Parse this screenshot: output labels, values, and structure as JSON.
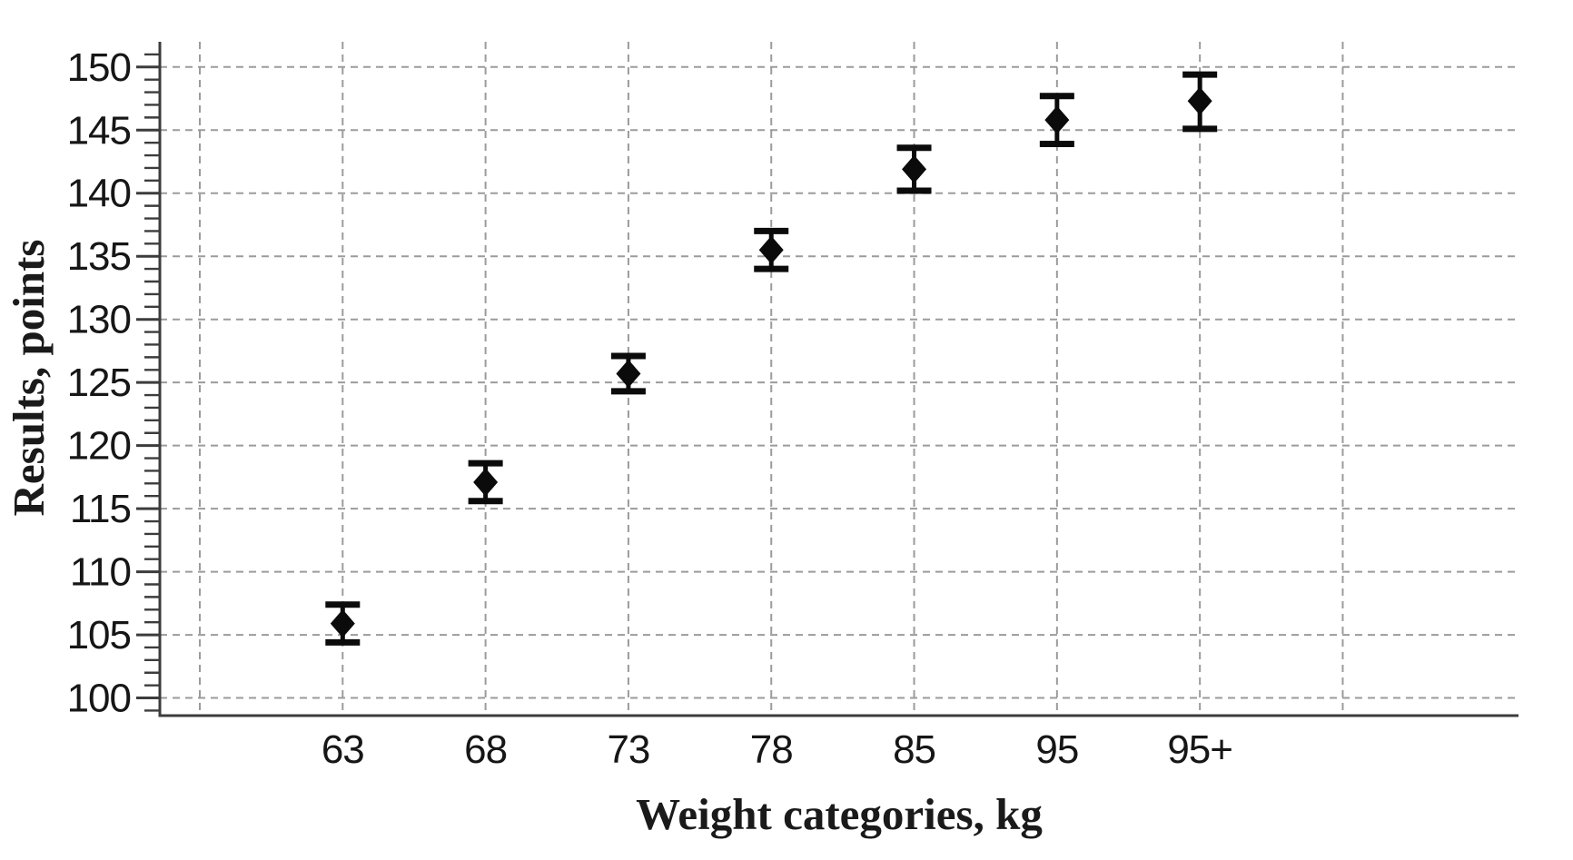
{
  "chart_data": {
    "type": "scatter",
    "title": "",
    "xlabel": "Weight categories, kg",
    "ylabel": "Results, points",
    "categories": [
      "63",
      "68",
      "73",
      "78",
      "85",
      "95",
      "95+"
    ],
    "series": [
      {
        "name": "Results",
        "means": [
          105.9,
          117.1,
          125.7,
          135.5,
          141.9,
          145.8,
          147.3
        ],
        "lower": [
          104.4,
          115.6,
          124.3,
          134.0,
          140.2,
          143.9,
          145.1
        ],
        "upper": [
          107.4,
          118.6,
          127.1,
          137.0,
          143.6,
          147.7,
          149.4
        ]
      }
    ],
    "ylim": [
      98.6,
      152.0
    ],
    "yticks": [
      100,
      105,
      110,
      115,
      120,
      125,
      130,
      135,
      140,
      145,
      150
    ],
    "y_minor_step": 1,
    "grid": "dashed",
    "legend": "none",
    "marker": "diamond",
    "colors": {
      "marker": "#0b0b0b",
      "grid": "#9b9b9b",
      "axis": "#3c3c3c",
      "text": "#161616"
    }
  }
}
